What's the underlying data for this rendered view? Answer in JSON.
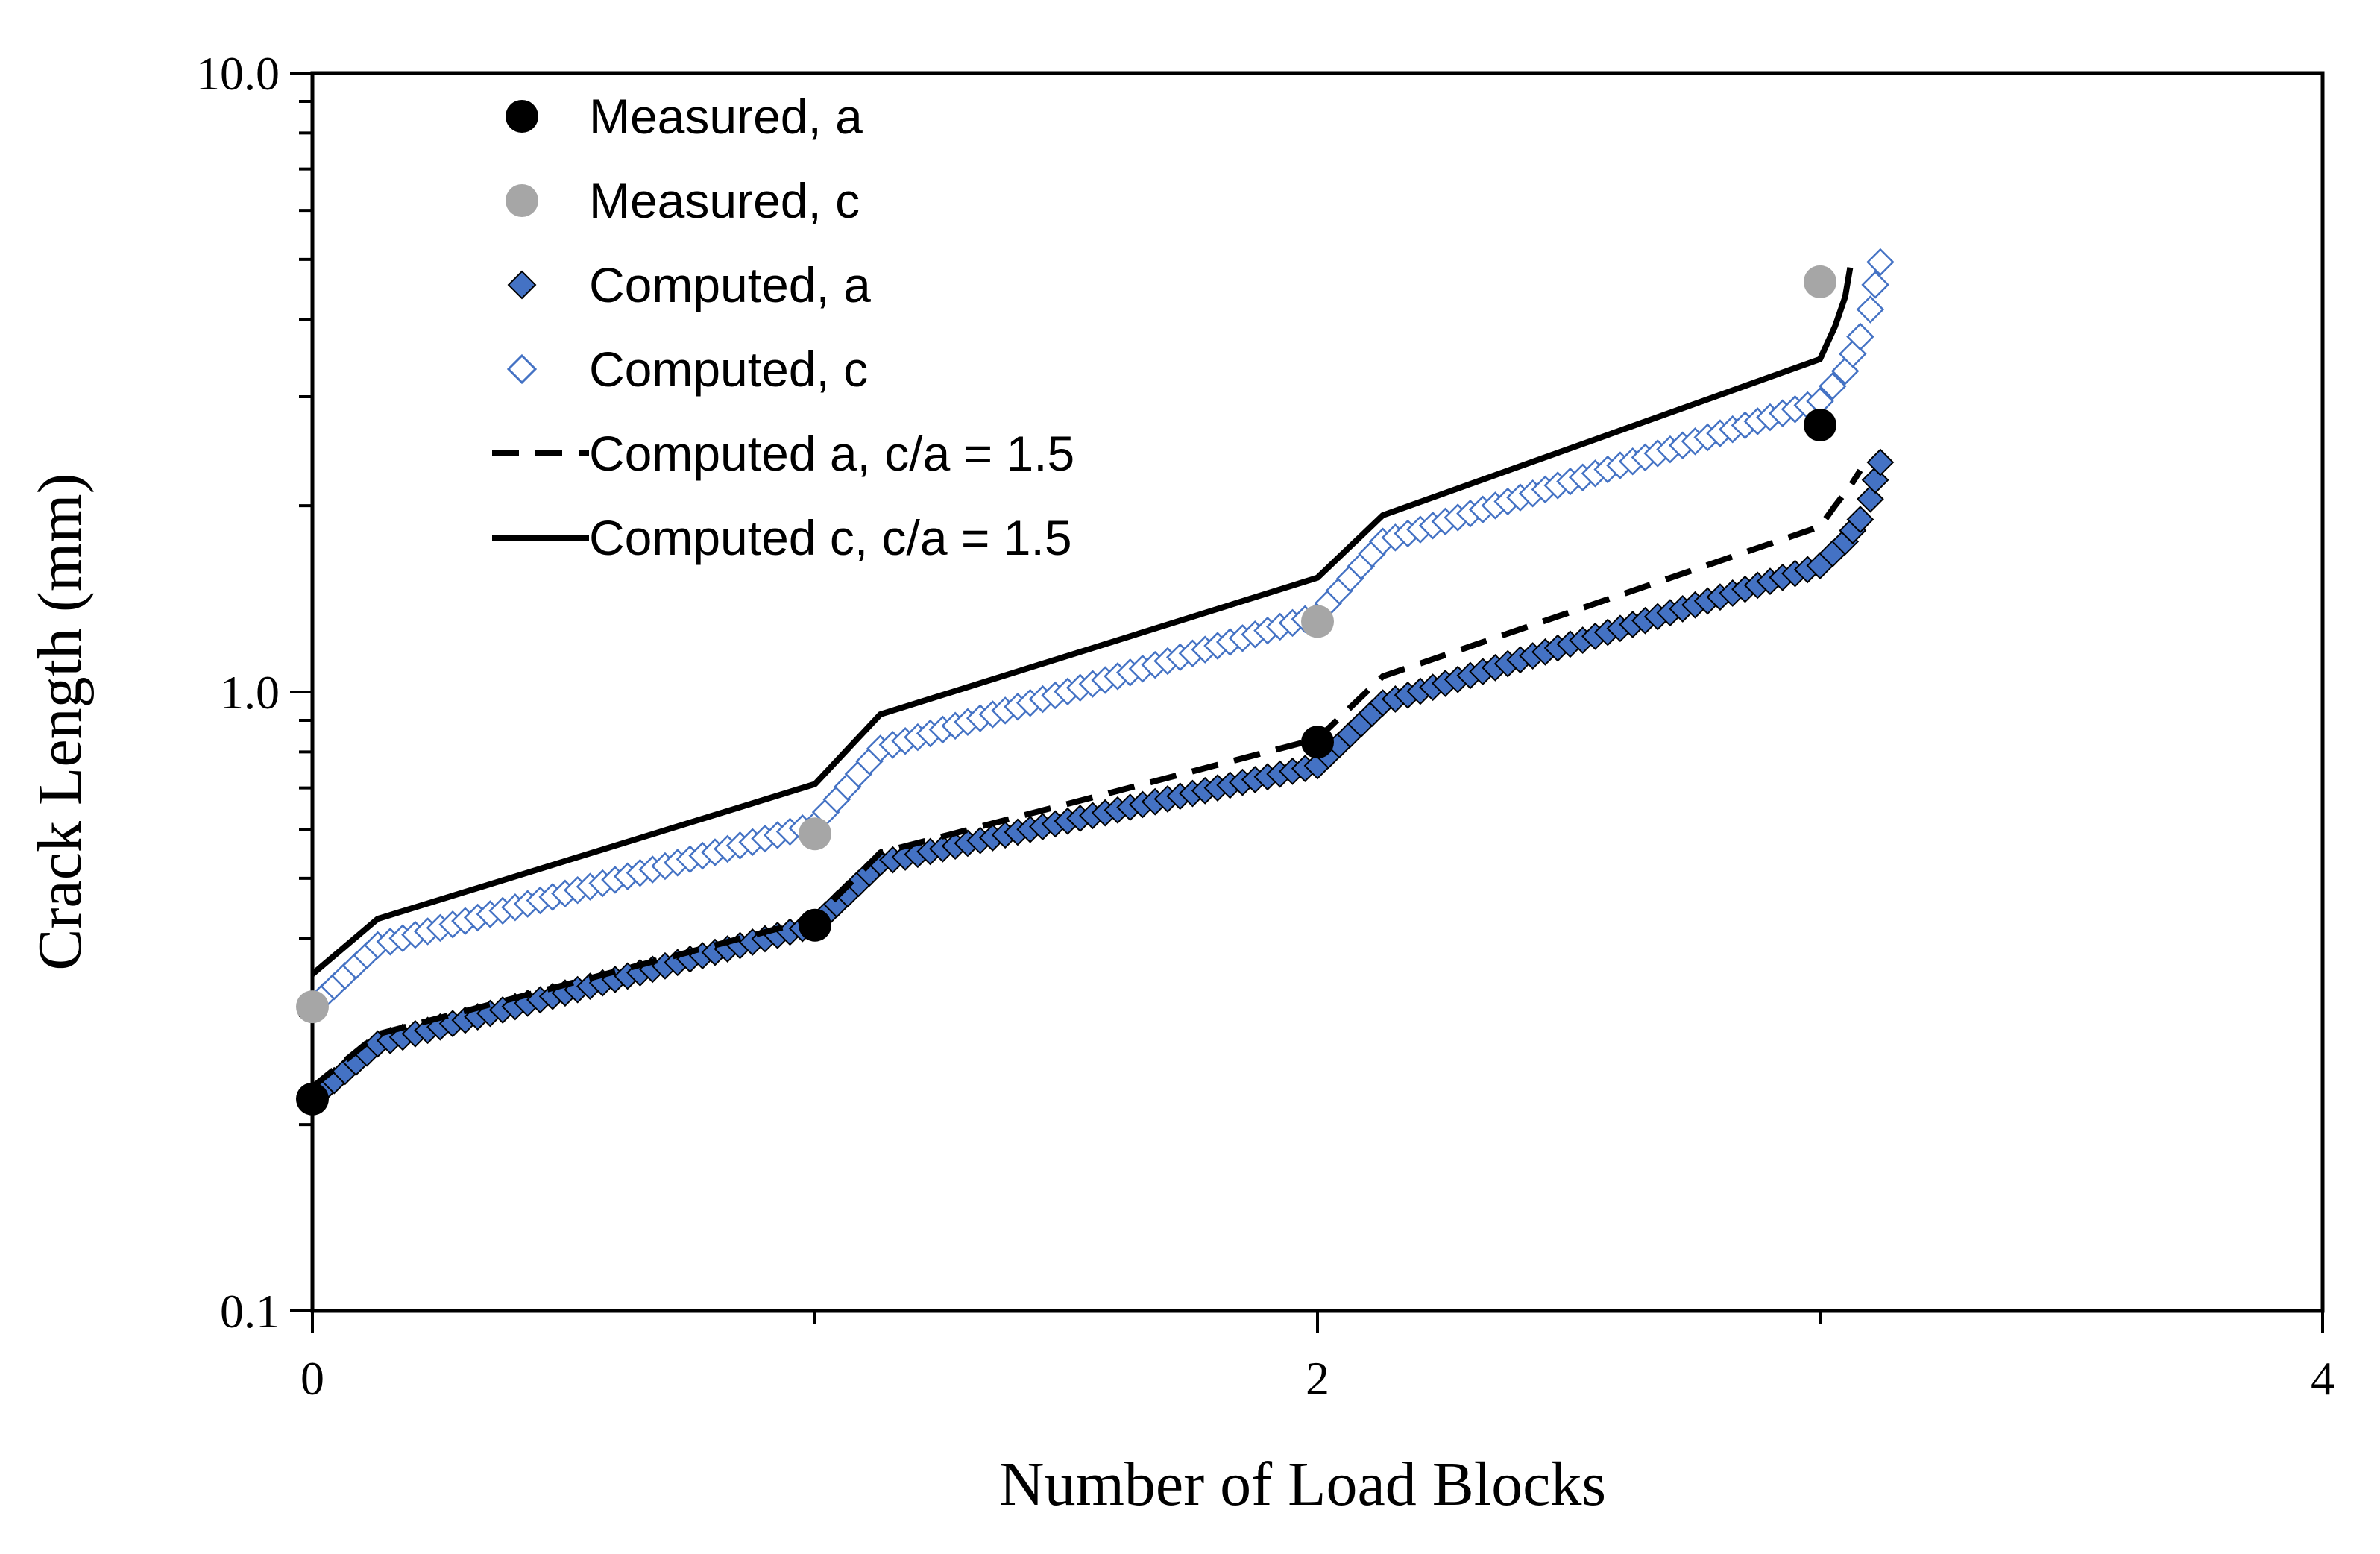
{
  "chart_data": {
    "type": "scatter",
    "title": "",
    "xlabel": "Number of Load Blocks",
    "ylabel": "Crack Length (mm)",
    "xlim": [
      0,
      4
    ],
    "ylim": [
      0.1,
      10.0
    ],
    "yscale": "log",
    "x_ticks": [
      {
        "v": 0,
        "label": "0"
      },
      {
        "v": 2,
        "label": "2"
      },
      {
        "v": 4,
        "label": "4"
      }
    ],
    "y_ticks": [
      {
        "v": 0.1,
        "label": "0.1"
      },
      {
        "v": 1.0,
        "label": "1.0"
      },
      {
        "v": 10.0,
        "label": "10.0"
      }
    ],
    "legend_position": "top-left",
    "series": [
      {
        "name": "Measured, a",
        "style": "marker-circle",
        "color": "#000000",
        "x": [
          0,
          1,
          2,
          3
        ],
        "y": [
          0.22,
          0.42,
          0.83,
          2.7
        ]
      },
      {
        "name": "Measured, c",
        "style": "marker-circle",
        "color": "#a6a6a6",
        "x": [
          0,
          1,
          2,
          3
        ],
        "y": [
          0.31,
          0.59,
          1.3,
          4.6
        ]
      },
      {
        "name": "Computed, a",
        "style": "marker-diamond-filled",
        "color": "#4472c4",
        "x": [
          0,
          0.13,
          1.0,
          1.13,
          2.0,
          2.13,
          3.0,
          3.05,
          3.08,
          3.1,
          3.11,
          3.12
        ],
        "y": [
          0.22,
          0.27,
          0.42,
          0.53,
          0.76,
          0.96,
          1.6,
          1.75,
          1.9,
          2.05,
          2.2,
          2.35
        ]
      },
      {
        "name": "Computed, c",
        "style": "marker-diamond-open",
        "color": "#4472c4",
        "x": [
          0,
          0.13,
          1.0,
          1.13,
          2.0,
          2.13,
          3.0,
          3.05,
          3.08,
          3.1,
          3.11,
          3.12
        ],
        "y": [
          0.31,
          0.39,
          0.61,
          0.81,
          1.33,
          1.75,
          2.95,
          3.3,
          3.75,
          4.15,
          4.55,
          4.95
        ]
      },
      {
        "name": "Computed a, c/a = 1.5",
        "style": "line-dashed",
        "color": "#000000",
        "x": [
          0,
          0.13,
          1.0,
          1.13,
          2.0,
          2.13,
          3.0,
          3.03,
          3.06,
          3.08
        ],
        "y": [
          0.23,
          0.28,
          0.43,
          0.55,
          0.84,
          1.06,
          1.85,
          2.0,
          2.15,
          2.28
        ]
      },
      {
        "name": "Computed c, c/a = 1.5",
        "style": "line-solid",
        "color": "#000000",
        "x": [
          0,
          0.13,
          1.0,
          1.13,
          2.0,
          2.13,
          3.0,
          3.03,
          3.05,
          3.06
        ],
        "y": [
          0.35,
          0.43,
          0.71,
          0.92,
          1.53,
          1.93,
          3.45,
          3.9,
          4.35,
          4.85
        ]
      }
    ]
  }
}
